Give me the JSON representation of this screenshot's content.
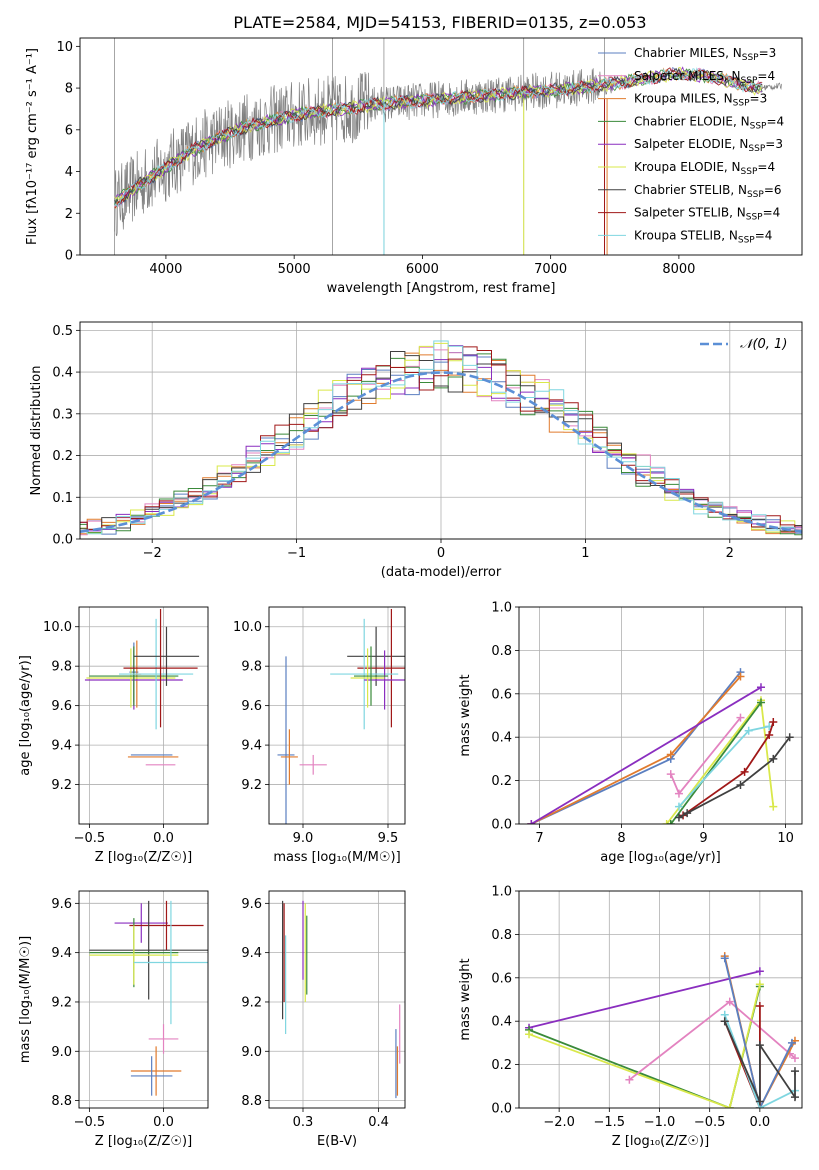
{
  "figure_title": "PLATE=2584, MJD=54153, FIBERID=0135, z=0.053",
  "colors": {
    "Chabrier MILES": "#5b7fc0",
    "Salpeter MILES": "#e383c0",
    "Kroupa MILES": "#e07b2e",
    "Chabrier ELODIE": "#3a8a3a",
    "Salpeter ELODIE": "#8a2ebf",
    "Kroupa ELODIE": "#d9e84a",
    "Chabrier STELIB": "#404040",
    "Salpeter STELIB": "#a01818",
    "Kroupa STELIB": "#7fd6e0",
    "data": "#808080",
    "normal": "#5b8fd6"
  },
  "chart_data": [
    {
      "id": "spectrum",
      "type": "line",
      "xlabel": "wavelength [Angstrom, rest frame]",
      "ylabel": "Flux [fλ10⁻¹⁷ erg cm⁻² s⁻¹ A⁻¹]",
      "xlim": [
        3330,
        8960
      ],
      "ylim": [
        0,
        10.4
      ],
      "xticks": [
        "4000",
        "5000",
        "6000",
        "7000",
        "8000"
      ],
      "yticks": [
        "0",
        "2",
        "4",
        "6",
        "8",
        "10"
      ],
      "legend_position": "right",
      "legend": [
        {
          "name": "Chabrier MILES",
          "n": "3"
        },
        {
          "name": "Salpeter MILES",
          "n": "4"
        },
        {
          "name": "Kroupa MILES",
          "n": "3"
        },
        {
          "name": "Chabrier ELODIE",
          "n": "4"
        },
        {
          "name": "Salpeter ELODIE",
          "n": "3"
        },
        {
          "name": "Kroupa ELODIE",
          "n": "4"
        },
        {
          "name": "Chabrier STELIB",
          "n": "6"
        },
        {
          "name": "Salpeter STELIB",
          "n": "4"
        },
        {
          "name": "Kroupa STELIB",
          "n": "4"
        }
      ],
      "legend_label_suffix": ", N",
      "legend_sub": "SSP",
      "continuum": [
        [
          3600,
          2.5
        ],
        [
          3800,
          3.4
        ],
        [
          4000,
          4.2
        ],
        [
          4200,
          5.0
        ],
        [
          4400,
          5.6
        ],
        [
          4600,
          6.1
        ],
        [
          4800,
          6.4
        ],
        [
          5000,
          6.7
        ],
        [
          5200,
          6.9
        ],
        [
          5400,
          7.0
        ],
        [
          5600,
          7.2
        ],
        [
          5800,
          7.3
        ],
        [
          6000,
          7.4
        ],
        [
          6200,
          7.5
        ],
        [
          6400,
          7.6
        ],
        [
          6600,
          7.7
        ],
        [
          6800,
          7.8
        ],
        [
          7000,
          7.9
        ],
        [
          7200,
          8.0
        ],
        [
          7400,
          8.15
        ],
        [
          7600,
          8.3
        ],
        [
          7800,
          8.5
        ],
        [
          8000,
          8.7
        ],
        [
          8200,
          8.6
        ],
        [
          8400,
          8.3
        ],
        [
          8600,
          8.0
        ],
        [
          8800,
          8.1
        ]
      ],
      "spikes_x": [
        3600,
        5300,
        5700,
        6790,
        7420
      ]
    },
    {
      "id": "residuals",
      "type": "step",
      "xlabel": "(data-model)/error",
      "ylabel": "Normed distribution",
      "xlim": [
        -2.5,
        2.5
      ],
      "ylim": [
        0,
        0.52
      ],
      "xticks": [
        "−2",
        "−1",
        "0",
        "1",
        "2"
      ],
      "yticks": [
        "0.0",
        "0.1",
        "0.2",
        "0.3",
        "0.4",
        "0.5"
      ],
      "legend_position": "upper right",
      "legend": [
        "𝒩(0, 1)"
      ]
    },
    {
      "id": "age_vs_Z",
      "type": "errorbar",
      "xlabel": "Z [log₁₀(Z/Z☉)]",
      "ylabel": "age  [log₁₀(age/yr)]",
      "xlim": [
        -0.57,
        0.3
      ],
      "ylim": [
        9.0,
        10.1
      ],
      "xticks": [
        "−0.5",
        "0.0"
      ],
      "yticks": [
        "9.2",
        "9.4",
        "9.6",
        "9.8",
        "10.0"
      ],
      "points": [
        {
          "model": "Chabrier MILES",
          "x": -0.2,
          "xerr": 0.03,
          "y": 9.77,
          "yerr": 0.15
        },
        {
          "model": "Kroupa MILES",
          "x": -0.18,
          "xerr": 0.03,
          "y": 9.76,
          "yerr": 0.17
        },
        {
          "model": "Salpeter ELODIE",
          "x": -0.2,
          "xerr": 0.33,
          "y": 9.73,
          "yerr": 0.15
        },
        {
          "model": "Kroupa ELODIE",
          "x": -0.22,
          "xerr": 0.3,
          "y": 9.74,
          "yerr": 0.15
        },
        {
          "model": "Chabrier ELODIE",
          "x": -0.2,
          "xerr": 0.3,
          "y": 9.75,
          "yerr": 0.15
        },
        {
          "model": "Kroupa STELIB",
          "x": -0.05,
          "xerr": 0.25,
          "y": 9.76,
          "yerr": 0.28
        },
        {
          "model": "Chabrier STELIB",
          "x": 0.02,
          "xerr": 0.22,
          "y": 9.85,
          "yerr": 0.15
        },
        {
          "model": "Salpeter STELIB",
          "x": -0.02,
          "xerr": 0.25,
          "y": 9.79,
          "yerr": 0.3
        },
        {
          "model": "Kroupa MILES",
          "x": -0.07,
          "xerr": 0.17,
          "y": 9.34,
          "yerr": 0.0
        },
        {
          "model": "Chabrier MILES",
          "x": -0.08,
          "xerr": 0.14,
          "y": 9.35,
          "yerr": 0.0
        },
        {
          "model": "Salpeter MILES",
          "x": -0.02,
          "xerr": 0.1,
          "y": 9.3,
          "yerr": 0.0
        }
      ]
    },
    {
      "id": "age_vs_mass",
      "type": "errorbar",
      "xlabel": "mass [log₁₀(M/M☉)]",
      "ylabel": "",
      "xlim": [
        8.8,
        9.6
      ],
      "ylim": [
        9.0,
        10.1
      ],
      "xticks": [
        "9.0",
        "9.5"
      ],
      "yticks": [
        "9.2",
        "9.4",
        "9.6",
        "9.8",
        "10.0"
      ],
      "points": [
        {
          "model": "Chabrier STELIB",
          "x": 9.43,
          "xerr": 0.17,
          "y": 9.85,
          "yerr": 0.15
        },
        {
          "model": "Salpeter STELIB",
          "x": 9.52,
          "xerr": 0.2,
          "y": 9.79,
          "yerr": 0.3
        },
        {
          "model": "Kroupa STELIB",
          "x": 9.36,
          "xerr": 0.2,
          "y": 9.76,
          "yerr": 0.28
        },
        {
          "model": "Salpeter ELODIE",
          "x": 9.48,
          "xerr": 0.12,
          "y": 9.73,
          "yerr": 0.15
        },
        {
          "model": "Kroupa ELODIE",
          "x": 9.38,
          "xerr": 0.1,
          "y": 9.74,
          "yerr": 0.15
        },
        {
          "model": "Chabrier ELODIE",
          "x": 9.4,
          "xerr": 0.1,
          "y": 9.75,
          "yerr": 0.15
        },
        {
          "model": "Chabrier MILES",
          "x": 8.9,
          "xerr": 0.05,
          "y": 9.35,
          "yerr": 0.5
        },
        {
          "model": "Kroupa MILES",
          "x": 8.92,
          "xerr": 0.05,
          "y": 9.34,
          "yerr": 0.14
        },
        {
          "model": "Salpeter MILES",
          "x": 9.06,
          "xerr": 0.08,
          "y": 9.3,
          "yerr": 0.05
        }
      ]
    },
    {
      "id": "weight_vs_age",
      "type": "line",
      "xlabel": "age  [log₁₀(age/yr)]",
      "ylabel": "mass weight",
      "xlim": [
        6.75,
        10.2
      ],
      "ylim": [
        0,
        1.0
      ],
      "xticks": [
        "7",
        "8",
        "9",
        "10"
      ],
      "yticks": [
        "0.0",
        "0.2",
        "0.4",
        "0.6",
        "0.8",
        "1.0"
      ],
      "series": [
        {
          "model": "Chabrier MILES",
          "x": [
            6.9,
            8.6,
            9.45
          ],
          "y": [
            0.0,
            0.3,
            0.7
          ]
        },
        {
          "model": "Kroupa MILES",
          "x": [
            6.9,
            8.6,
            9.45
          ],
          "y": [
            0.0,
            0.32,
            0.68
          ]
        },
        {
          "model": "Salpeter MILES",
          "x": [
            8.6,
            8.7,
            9.45
          ],
          "y": [
            0.23,
            0.14,
            0.49
          ]
        },
        {
          "model": "Salpeter ELODIE",
          "x": [
            6.9,
            9.7
          ],
          "y": [
            0.0,
            0.63
          ]
        },
        {
          "model": "Kroupa ELODIE",
          "x": [
            8.55,
            9.7,
            9.85
          ],
          "y": [
            0.0,
            0.57,
            0.08
          ]
        },
        {
          "model": "Chabrier ELODIE",
          "x": [
            8.6,
            9.7
          ],
          "y": [
            0.0,
            0.56
          ]
        },
        {
          "model": "Kroupa STELIB",
          "x": [
            8.7,
            9.55,
            9.8
          ],
          "y": [
            0.08,
            0.43,
            0.45
          ]
        },
        {
          "model": "Salpeter STELIB",
          "x": [
            8.75,
            9.5,
            9.8,
            9.85
          ],
          "y": [
            0.04,
            0.24,
            0.41,
            0.47
          ]
        },
        {
          "model": "Chabrier STELIB",
          "x": [
            8.7,
            8.8,
            9.45,
            9.85,
            10.05
          ],
          "y": [
            0.03,
            0.05,
            0.18,
            0.3,
            0.4
          ]
        }
      ]
    },
    {
      "id": "mass_vs_Z",
      "type": "errorbar",
      "xlabel": "Z [log₁₀(Z/Z☉)]",
      "ylabel": "mass [log₁₀(M/M☉)]",
      "xlim": [
        -0.57,
        0.3
      ],
      "ylim": [
        8.77,
        9.65
      ],
      "xticks": [
        "−0.5",
        "0.0"
      ],
      "yticks": [
        "8.8",
        "9.0",
        "9.2",
        "9.4",
        "9.6"
      ],
      "points": [
        {
          "model": "Salpeter ELODIE",
          "x": -0.15,
          "xerr": 0.18,
          "y": 9.52,
          "yerr": 0.08
        },
        {
          "model": "Salpeter STELIB",
          "x": 0.02,
          "xerr": 0.25,
          "y": 9.51,
          "yerr": 0.1
        },
        {
          "model": "Chabrier STELIB",
          "x": -0.1,
          "xerr": 0.4,
          "y": 9.41,
          "yerr": 0.2
        },
        {
          "model": "Chabrier ELODIE",
          "x": -0.2,
          "xerr": 0.3,
          "y": 9.4,
          "yerr": 0.14
        },
        {
          "model": "Kroupa ELODIE",
          "x": -0.2,
          "xerr": 0.3,
          "y": 9.39,
          "yerr": 0.12
        },
        {
          "model": "Kroupa STELIB",
          "x": 0.05,
          "xerr": 0.25,
          "y": 9.36,
          "yerr": 0.25
        },
        {
          "model": "Salpeter MILES",
          "x": 0.0,
          "xerr": 0.1,
          "y": 9.05,
          "yerr": 0.06
        },
        {
          "model": "Kroupa MILES",
          "x": -0.05,
          "xerr": 0.17,
          "y": 8.92,
          "yerr": 0.1
        },
        {
          "model": "Chabrier MILES",
          "x": -0.08,
          "xerr": 0.14,
          "y": 8.9,
          "yerr": 0.08
        }
      ]
    },
    {
      "id": "mass_vs_ebv",
      "type": "errorbar",
      "xlabel": "E(B-V)",
      "ylabel": "",
      "xlim": [
        0.255,
        0.435
      ],
      "ylim": [
        8.77,
        9.65
      ],
      "xticks": [
        "0.3",
        "0.4"
      ],
      "yticks": [
        "8.8",
        "9.0",
        "9.2",
        "9.4",
        "9.6"
      ],
      "points": [
        {
          "model": "Chabrier STELIB",
          "x": 0.273,
          "xerr": 0,
          "y": 9.37,
          "yerr": 0.24
        },
        {
          "model": "Salpeter STELIB",
          "x": 0.275,
          "xerr": 0,
          "y": 9.4,
          "yerr": 0.2
        },
        {
          "model": "Kroupa STELIB",
          "x": 0.277,
          "xerr": 0,
          "y": 9.27,
          "yerr": 0.2
        },
        {
          "model": "Salpeter ELODIE",
          "x": 0.3,
          "xerr": 0,
          "y": 9.45,
          "yerr": 0.16
        },
        {
          "model": "Chabrier ELODIE",
          "x": 0.305,
          "xerr": 0,
          "y": 9.39,
          "yerr": 0.16
        },
        {
          "model": "Kroupa ELODIE",
          "x": 0.303,
          "xerr": 0,
          "y": 9.4,
          "yerr": 0.2
        },
        {
          "model": "Salpeter MILES",
          "x": 0.428,
          "xerr": 0,
          "y": 9.07,
          "yerr": 0.12
        },
        {
          "model": "Kroupa MILES",
          "x": 0.425,
          "xerr": 0,
          "y": 8.92,
          "yerr": 0.1
        },
        {
          "model": "Chabrier MILES",
          "x": 0.423,
          "xerr": 0,
          "y": 8.95,
          "yerr": 0.14
        }
      ]
    },
    {
      "id": "weight_vs_Z",
      "type": "line",
      "xlabel": "Z [log₁₀(Z/Z☉)]",
      "ylabel": "mass weight",
      "xlim": [
        -2.4,
        0.42
      ],
      "ylim": [
        0,
        1.0
      ],
      "xticks": [
        "−2.0",
        "−1.5",
        "−1.0",
        "−0.5",
        "0.0"
      ],
      "yticks": [
        "0.0",
        "0.2",
        "0.4",
        "0.6",
        "0.8",
        "1.0"
      ],
      "series": [
        {
          "model": "Salpeter ELODIE",
          "x": [
            -2.3,
            0.0
          ],
          "y": [
            0.37,
            0.63
          ]
        },
        {
          "model": "Chabrier ELODIE",
          "x": [
            -2.3,
            -0.3,
            0.0
          ],
          "y": [
            0.36,
            0.0,
            0.56
          ]
        },
        {
          "model": "Kroupa ELODIE",
          "x": [
            -2.3,
            -0.3,
            0.0
          ],
          "y": [
            0.34,
            0.0,
            0.57
          ]
        },
        {
          "model": "Salpeter MILES",
          "x": [
            -1.3,
            -0.3,
            0.3,
            0.35
          ],
          "y": [
            0.13,
            0.49,
            0.25,
            0.23
          ]
        },
        {
          "model": "Kroupa MILES",
          "x": [
            -0.35,
            0.0,
            0.35
          ],
          "y": [
            0.7,
            0.0,
            0.31
          ]
        },
        {
          "model": "Chabrier MILES",
          "x": [
            -0.35,
            0.0,
            0.32
          ],
          "y": [
            0.69,
            0.0,
            0.3
          ]
        },
        {
          "model": "Salpeter STELIB",
          "x": [
            -0.35,
            0.0,
            0.0
          ],
          "y": [
            0.4,
            0.0,
            0.47
          ]
        },
        {
          "model": "Kroupa STELIB",
          "x": [
            -0.35,
            0.0,
            0.35
          ],
          "y": [
            0.43,
            0.0,
            0.08
          ]
        },
        {
          "model": "Chabrier STELIB",
          "x": [
            -0.35,
            0.0,
            0.0,
            0.35,
            0.35
          ],
          "y": [
            0.4,
            0.03,
            0.29,
            0.05,
            0.17
          ]
        }
      ]
    }
  ]
}
